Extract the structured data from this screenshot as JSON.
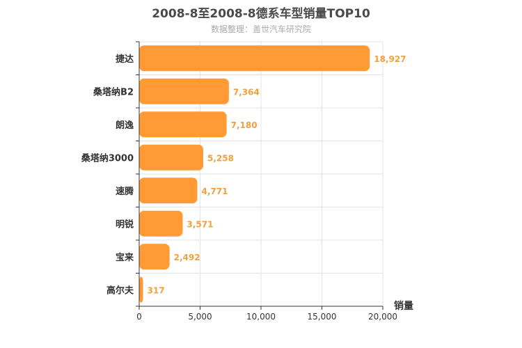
{
  "chart_data": {
    "type": "bar",
    "orientation": "horizontal",
    "title": "2008-8至2008-8德系车型销量TOP10",
    "subtitle": "数据整理：盖世汽车研究院",
    "categories": [
      "捷达",
      "桑塔纳B2",
      "朗逸",
      "桑塔纳3000",
      "速腾",
      "明锐",
      "宝来",
      "高尔夫"
    ],
    "values": [
      18927,
      7364,
      7180,
      5258,
      4771,
      3571,
      2492,
      317
    ],
    "value_labels": [
      "18,927",
      "7,364",
      "7,180",
      "5,258",
      "4,771",
      "3,571",
      "2,492",
      "317"
    ],
    "xlabel": "销量",
    "ylabel": "",
    "xlim": [
      0,
      20000
    ],
    "xticks": [
      0,
      5000,
      10000,
      15000,
      20000
    ],
    "xtick_labels": [
      "0",
      "5,000",
      "10,000",
      "15,000",
      "20,000"
    ],
    "grid": true,
    "bar_color": "#ff9a35",
    "label_color": "#f0a040"
  }
}
